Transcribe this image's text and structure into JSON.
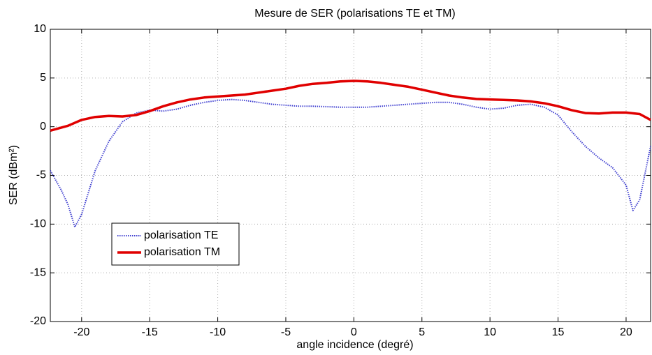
{
  "chart_data": {
    "type": "line",
    "title": "Mesure de SER (polarisations TE et TM)",
    "xlabel": "angle incidence (degré)",
    "ylabel": "SER (dBm²)",
    "xlim": [
      -22.3,
      21.8
    ],
    "ylim": [
      -20,
      10
    ],
    "xticks": [
      -20,
      -15,
      -10,
      -5,
      0,
      5,
      10,
      15,
      20
    ],
    "yticks": [
      -20,
      -15,
      -10,
      -5,
      0,
      5,
      10
    ],
    "grid": true,
    "legend": "left",
    "series": [
      {
        "name": "polarisation TE",
        "color": "#4040d0",
        "style": "dotted",
        "x": [
          -22.3,
          -21.5,
          -21,
          -20.5,
          -20,
          -19,
          -18,
          -17,
          -16,
          -15,
          -14,
          -13,
          -12,
          -11,
          -10,
          -9,
          -8,
          -7,
          -6,
          -5,
          -4,
          -3,
          -2,
          -1,
          0,
          1,
          2,
          3,
          4,
          5,
          6,
          7,
          8,
          9,
          10,
          11,
          12,
          13,
          14,
          15,
          16,
          17,
          18,
          19,
          20,
          20.5,
          21,
          21.8
        ],
        "values": [
          -4.5,
          -6.5,
          -8,
          -10.3,
          -9,
          -4.5,
          -1.5,
          0.5,
          1.4,
          1.7,
          1.6,
          1.8,
          2.2,
          2.5,
          2.7,
          2.8,
          2.7,
          2.5,
          2.3,
          2.2,
          2.1,
          2.1,
          2.05,
          2.0,
          2.0,
          2.0,
          2.1,
          2.2,
          2.3,
          2.4,
          2.5,
          2.5,
          2.3,
          2.0,
          1.8,
          1.9,
          2.2,
          2.3,
          2.0,
          1.2,
          -0.5,
          -2,
          -3.2,
          -4.2,
          -6,
          -8.6,
          -7.5,
          -2
        ]
      },
      {
        "name": "polarisation TM",
        "color": "#e00000",
        "style": "solid",
        "x": [
          -22.3,
          -21,
          -20,
          -19,
          -18,
          -17,
          -16,
          -15,
          -14,
          -13,
          -12,
          -11,
          -10,
          -9,
          -8,
          -7,
          -6,
          -5,
          -4,
          -3,
          -2,
          -1,
          0,
          1,
          2,
          3,
          4,
          5,
          6,
          7,
          8,
          9,
          10,
          11,
          12,
          13,
          14,
          15,
          16,
          17,
          18,
          19,
          20,
          21,
          21.8
        ],
        "values": [
          -0.4,
          0.1,
          0.7,
          1.0,
          1.1,
          1.05,
          1.2,
          1.6,
          2.1,
          2.5,
          2.8,
          3.0,
          3.1,
          3.2,
          3.3,
          3.5,
          3.7,
          3.9,
          4.2,
          4.4,
          4.5,
          4.65,
          4.7,
          4.65,
          4.5,
          4.3,
          4.1,
          3.8,
          3.5,
          3.2,
          3.0,
          2.85,
          2.8,
          2.75,
          2.7,
          2.6,
          2.4,
          2.1,
          1.7,
          1.4,
          1.35,
          1.45,
          1.45,
          1.3,
          0.7
        ]
      }
    ]
  }
}
